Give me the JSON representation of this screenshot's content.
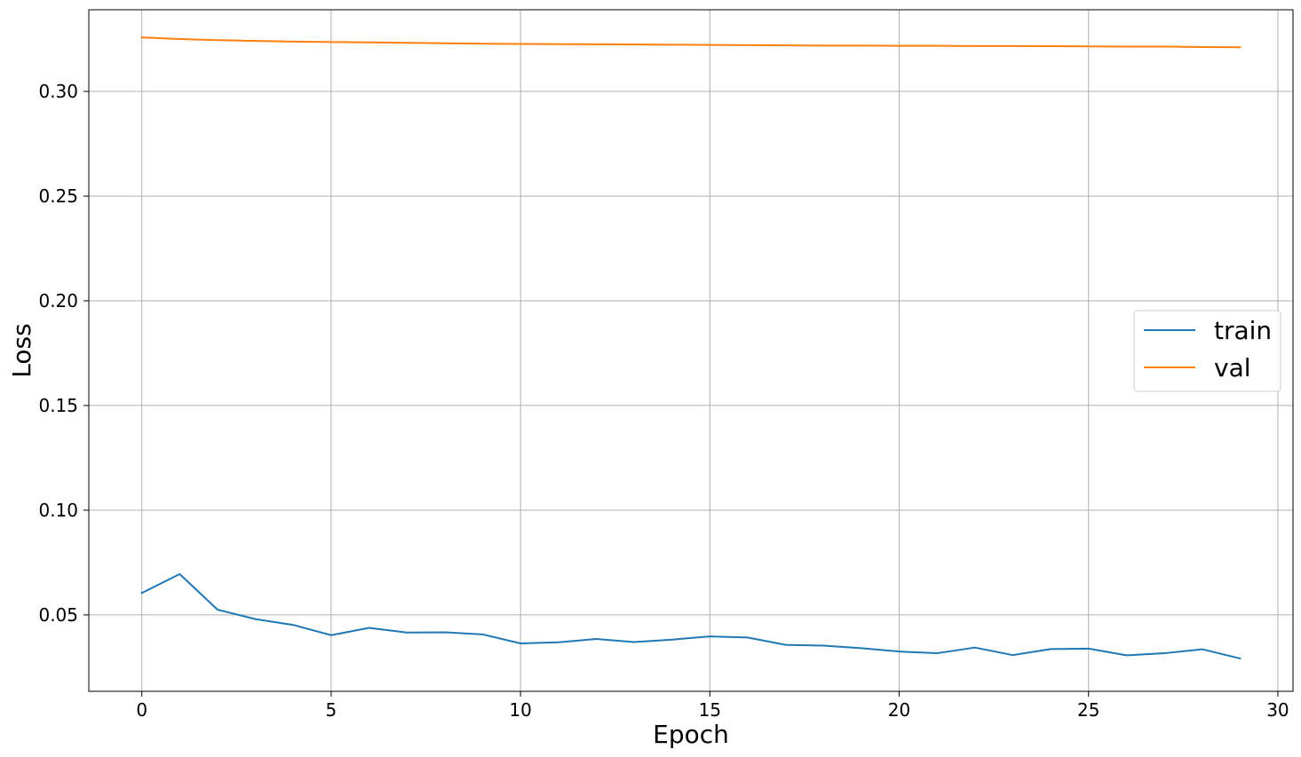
{
  "chart_data": {
    "type": "line",
    "title": "",
    "xlabel": "Epoch",
    "ylabel": "Loss",
    "xlim": [
      -1.4,
      30.4
    ],
    "ylim": [
      0.0135,
      0.339
    ],
    "xticks": [
      0,
      5,
      10,
      15,
      20,
      25,
      30
    ],
    "xtick_labels": [
      "0",
      "5",
      "10",
      "15",
      "20",
      "25",
      "30"
    ],
    "yticks": [
      0.05,
      0.1,
      0.15,
      0.2,
      0.25,
      0.3
    ],
    "ytick_labels": [
      "0.05",
      "0.10",
      "0.15",
      "0.20",
      "0.25",
      "0.30"
    ],
    "grid": true,
    "legend_position": "center-right",
    "x": [
      0,
      1,
      2,
      3,
      4,
      5,
      6,
      7,
      8,
      9,
      10,
      11,
      12,
      13,
      14,
      15,
      16,
      17,
      18,
      19,
      20,
      21,
      22,
      23,
      24,
      25,
      26,
      27,
      28,
      29
    ],
    "series": [
      {
        "name": "train",
        "color": "#1f77b4",
        "values": [
          0.0605,
          0.0695,
          0.0525,
          0.048,
          0.0452,
          0.0403,
          0.0438,
          0.0416,
          0.0417,
          0.0407,
          0.0364,
          0.0369,
          0.0385,
          0.037,
          0.0382,
          0.0397,
          0.0392,
          0.0357,
          0.0353,
          0.0341,
          0.0325,
          0.0317,
          0.0344,
          0.0308,
          0.0337,
          0.0339,
          0.0307,
          0.0317,
          0.0336,
          0.0292
        ]
      },
      {
        "name": "val",
        "color": "#ff7f0e",
        "values": [
          0.3258,
          0.325,
          0.3245,
          0.3241,
          0.3238,
          0.3236,
          0.3234,
          0.3232,
          0.323,
          0.3228,
          0.3227,
          0.3226,
          0.3225,
          0.3224,
          0.3223,
          0.3222,
          0.3221,
          0.322,
          0.3219,
          0.3219,
          0.3218,
          0.3218,
          0.3217,
          0.3217,
          0.3216,
          0.3215,
          0.3214,
          0.3214,
          0.3212,
          0.3211
        ]
      }
    ]
  }
}
